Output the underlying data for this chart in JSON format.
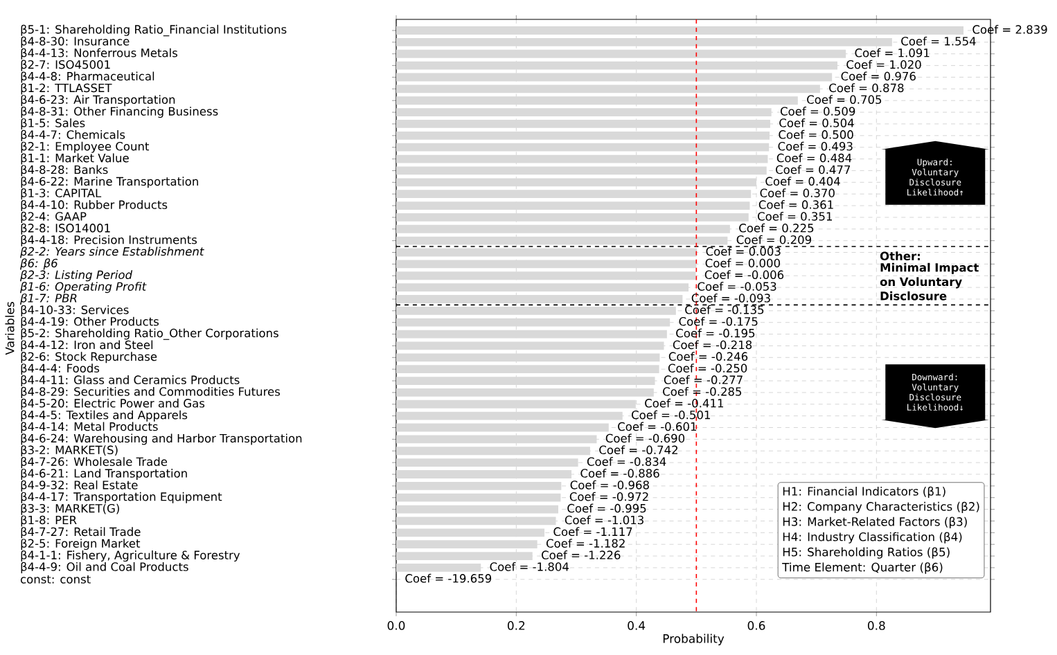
{
  "chart_data": {
    "type": "bar",
    "orientation": "horizontal",
    "xlabel": "Probability",
    "ylabel": "Variables",
    "color": "#d9d9d9",
    "grid": true,
    "categories": [
      "β5-1: Shareholding Ratio_Financial Institutions",
      "β4-8-30: Insurance",
      "β4-4-13: Nonferrous Metals",
      "β2-7: ISO45001",
      "β4-4-8: Pharmaceutical",
      "β1-2: TTLASSET",
      "β4-6-23: Air Transportation",
      "β4-8-31: Other Financing Business",
      "β1-5: Sales",
      "β4-4-7: Chemicals",
      "β2-1: Employee Count",
      "β1-1: Market Value",
      "β4-8-28: Banks",
      "β4-6-22: Marine Transportation",
      "β1-3: CAPITAL",
      "β4-4-10: Rubber Products",
      "β2-4: GAAP",
      "β2-8: ISO14001",
      "β4-4-18: Precision Instruments",
      "β2-2: Years since Establishment",
      "β6: β6",
      "β2-3: Listing Period",
      "β1-6: Operating Profit",
      "β1-7: PBR",
      "β4-10-33: Services",
      "β4-4-19: Other Products",
      "β5-2: Shareholding Ratio_Other Corporations",
      "β4-4-12: Iron and Steel",
      "β2-6: Stock Repurchase",
      "β4-4-4: Foods",
      "β4-4-11: Glass and Ceramics Products",
      "β4-8-29: Securities and Commodities Futures",
      "β4-5-20: Electric Power and Gas",
      "β4-4-5: Textiles and Apparels",
      "β4-4-14: Metal Products",
      "β4-6-24: Warehousing and Harbor Transportation",
      "β3-2: MARKET(S)",
      "β4-7-26: Wholesale Trade",
      "β4-6-21: Land Transportation",
      "β4-9-32: Real Estate",
      "β4-4-17: Transportation Equipment",
      "β3-3: MARKET(G)",
      "β1-8: PER",
      "β4-7-27: Retail Trade",
      "β2-5: Foreign Market",
      "β4-1-1: Fishery, Agriculture & Forestry",
      "β4-4-9: Oil and Coal Products",
      "const: const"
    ],
    "values": [
      0.945,
      0.826,
      0.749,
      0.735,
      0.726,
      0.706,
      0.669,
      0.625,
      0.623,
      0.622,
      0.621,
      0.619,
      0.617,
      0.6,
      0.591,
      0.589,
      0.587,
      0.556,
      0.552,
      0.501,
      0.5,
      0.499,
      0.487,
      0.477,
      0.466,
      0.456,
      0.451,
      0.446,
      0.439,
      0.438,
      0.431,
      0.429,
      0.399,
      0.377,
      0.354,
      0.334,
      0.323,
      0.303,
      0.292,
      0.275,
      0.274,
      0.27,
      0.266,
      0.247,
      0.235,
      0.227,
      0.141,
      0.0
    ],
    "xlim": [
      0,
      0.99
    ],
    "xticks": [
      {
        "value": 0,
        "label": "0.0"
      },
      0.2,
      0.4,
      0.6,
      0.8
    ],
    "ref_lines": [
      {
        "axis": "x",
        "value": 0.5,
        "color": "#ff0000",
        "line_style": "dashed"
      }
    ],
    "annotations": [
      "Upward: Voluntary Disclosure Likelihood↑",
      "Other:",
      "Minimal Impact on Voluntary Disclosure",
      "Downward: Voluntary Disclosure Likelihood↓",
      "H1: Financial Indicators (β1)",
      "H2: Company Characteristics (β2)",
      "H3: Market-Related Factors (β3)",
      "H4: Industry Classification (β4)",
      "H5: Shareholding Ratios (β5)",
      "Time Element: Quarter (β6)",
      {
        "text": "Coef = 2.839",
        "x": 0.945,
        "y": "β5-1: Shareholding Ratio_Financial Institutions"
      },
      {
        "text": "Coef = 1.554",
        "x": 0.826,
        "y": "β4-8-30: Insurance"
      },
      {
        "text": "Coef = 1.091",
        "x": 0.749,
        "y": "β4-4-13: Nonferrous Metals"
      },
      {
        "text": "Coef = 1.020",
        "x": 0.735,
        "y": "β2-7: ISO45001"
      },
      {
        "text": "Coef = 0.976",
        "x": 0.726,
        "y": "β4-4-8: Pharmaceutical"
      },
      {
        "text": "Coef = 0.878",
        "x": 0.706,
        "y": "β1-2: TTLASSET"
      },
      {
        "text": "Coef = 0.705",
        "x": 0.669,
        "y": "β4-6-23: Air Transportation"
      },
      {
        "text": "Coef = 0.509",
        "x": 0.625,
        "y": "β4-8-31: Other Financing Business"
      },
      {
        "text": "Coef = 0.504",
        "x": 0.623,
        "y": "β1-5: Sales"
      },
      {
        "text": "Coef = 0.500",
        "x": 0.622,
        "y": "β4-4-7: Chemicals"
      },
      {
        "text": "Coef = 0.493",
        "x": 0.621,
        "y": "β2-1: Employee Count"
      },
      {
        "text": "Coef = 0.484",
        "x": 0.619,
        "y": "β1-1: Market Value"
      },
      {
        "text": "Coef = 0.477",
        "x": 0.617,
        "y": "β4-8-28: Banks"
      },
      {
        "text": "Coef = 0.404",
        "x": 0.6,
        "y": "β4-6-22: Marine Transportation"
      },
      {
        "text": "Coef = 0.370",
        "x": 0.591,
        "y": "β1-3: CAPITAL"
      },
      {
        "text": "Coef = 0.361",
        "x": 0.589,
        "y": "β4-4-10: Rubber Products"
      },
      {
        "text": "Coef = 0.351",
        "x": 0.587,
        "y": "β2-4: GAAP"
      },
      {
        "text": "Coef = 0.225",
        "x": 0.556,
        "y": "β2-8: ISO14001"
      },
      {
        "text": "Coef = 0.209",
        "x": 0.552,
        "y": "β4-4-18: Precision Instruments"
      },
      {
        "text": "Coef = 0.003",
        "x": 0.501,
        "y": "β2-2: Years since Establishment"
      },
      {
        "text": "Coef = 0.000",
        "x": 0.5,
        "y": "β6: β6"
      },
      {
        "text": "Coef = -0.006",
        "x": 0.499,
        "y": "β2-3: Listing Period"
      },
      {
        "text": "Coef = -0.053",
        "x": 0.487,
        "y": "β1-6: Operating Profit"
      },
      {
        "text": "Coef = -0.093",
        "x": 0.477,
        "y": "β1-7: PBR"
      },
      {
        "text": "Coef = -0.135",
        "x": 0.466,
        "y": "β4-10-33: Services"
      },
      {
        "text": "Coef = -0.175",
        "x": 0.456,
        "y": "β4-4-19: Other Products"
      },
      {
        "text": "Coef = -0.195",
        "x": 0.451,
        "y": "β5-2: Shareholding Ratio_Other Corporations"
      },
      {
        "text": "Coef = -0.218",
        "x": 0.446,
        "y": "β4-4-12: Iron and Steel"
      },
      {
        "text": "Coef = -0.246",
        "x": 0.439,
        "y": "β2-6: Stock Repurchase"
      },
      {
        "text": "Coef = -0.250",
        "x": 0.438,
        "y": "β4-4-4: Foods"
      },
      {
        "text": "Coef = -0.277",
        "x": 0.431,
        "y": "β4-4-11: Glass and Ceramics Products"
      },
      {
        "text": "Coef = -0.285",
        "x": 0.429,
        "y": "β4-8-29: Securities and Commodities Futures"
      },
      {
        "text": "Coef = -0.411",
        "x": 0.399,
        "y": "β4-5-20: Electric Power and Gas"
      },
      {
        "text": "Coef = -0.501",
        "x": 0.377,
        "y": "β4-4-5: Textiles and Apparels"
      },
      {
        "text": "Coef = -0.601",
        "x": 0.354,
        "y": "β4-4-14: Metal Products"
      },
      {
        "text": "Coef = -0.690",
        "x": 0.334,
        "y": "β4-6-24: Warehousing and Harbor Transportation"
      },
      {
        "text": "Coef = -0.742",
        "x": 0.323,
        "y": "β3-2: MARKET(S)"
      },
      {
        "text": "Coef = -0.834",
        "x": 0.303,
        "y": "β4-7-26: Wholesale Trade"
      },
      {
        "text": "Coef = -0.886",
        "x": 0.292,
        "y": "β4-6-21: Land Transportation"
      },
      {
        "text": "Coef = -0.968",
        "x": 0.275,
        "y": "β4-9-32: Real Estate"
      },
      {
        "text": "Coef = -0.972",
        "x": 0.274,
        "y": "β4-4-17: Transportation Equipment"
      },
      {
        "text": "Coef = -0.995",
        "x": 0.27,
        "y": "β3-3: MARKET(G)"
      },
      {
        "text": "Coef = -1.013",
        "x": 0.266,
        "y": "β1-8: PER"
      },
      {
        "text": "Coef = -1.117",
        "x": 0.247,
        "y": "β4-7-27: Retail Trade"
      },
      {
        "text": "Coef = -1.182",
        "x": 0.235,
        "y": "β2-5: Foreign Market"
      },
      {
        "text": "Coef = -1.226",
        "x": 0.227,
        "y": "β4-1-1: Fishery, Agriculture & Forestry"
      },
      {
        "text": "Coef = -1.804",
        "x": 0.141,
        "y": "β4-4-9: Oil and Coal Products"
      },
      {
        "text": "Coef = -19.659",
        "x": 0.0,
        "y": "const: const"
      }
    ]
  }
}
